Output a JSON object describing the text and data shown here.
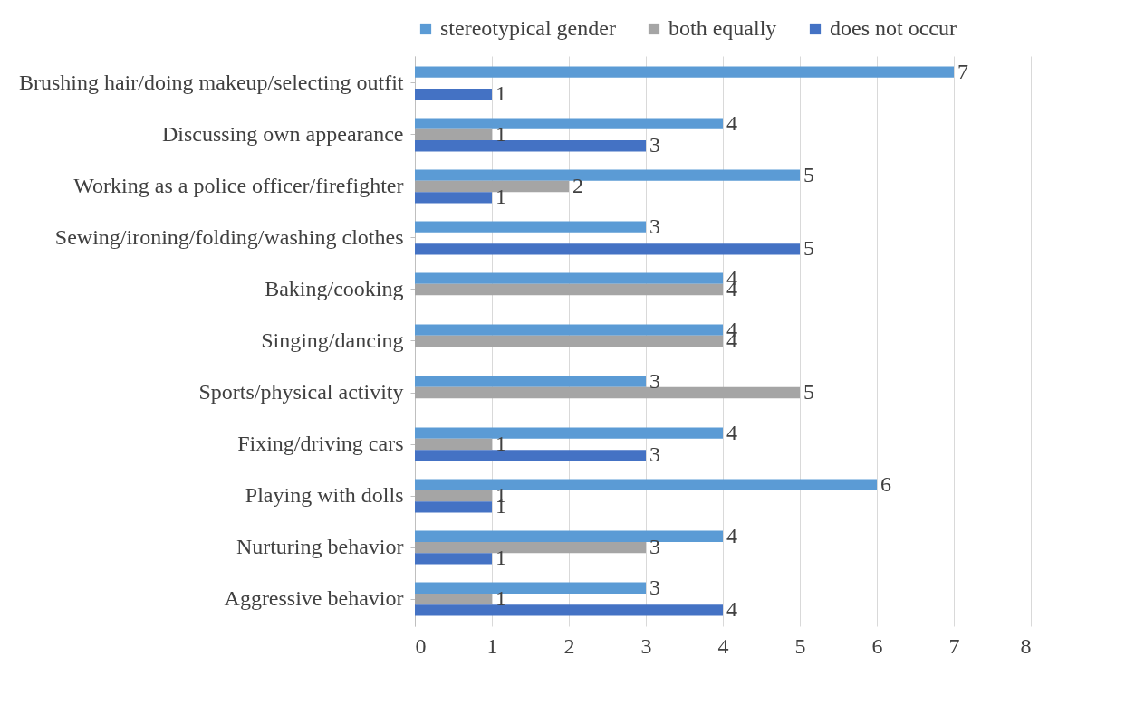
{
  "chart_data": {
    "type": "bar",
    "orientation": "horizontal",
    "categories": [
      "Brushing hair/doing makeup/selecting outfit",
      "Discussing own appearance",
      "Working as a police officer/firefighter",
      "Sewing/ironing/folding/washing clothes",
      "Baking/cooking",
      "Singing/dancing",
      "Sports/physical activity",
      "Fixing/driving cars",
      "Playing with dolls",
      "Nurturing behavior",
      "Aggressive behavior"
    ],
    "series": [
      {
        "name": "stereotypical gender",
        "color": "#5b9bd5",
        "values": [
          7,
          4,
          5,
          3,
          4,
          4,
          3,
          4,
          6,
          4,
          3
        ]
      },
      {
        "name": "both equally",
        "color": "#a5a5a5",
        "values": [
          null,
          1,
          2,
          null,
          4,
          4,
          5,
          1,
          1,
          3,
          1
        ]
      },
      {
        "name": "does not occur",
        "color": "#4472c4",
        "values": [
          1,
          3,
          1,
          5,
          null,
          null,
          null,
          3,
          1,
          1,
          4
        ]
      }
    ],
    "xlim": [
      0,
      8
    ],
    "xticks": [
      0,
      1,
      2,
      3,
      4,
      5,
      6,
      7,
      8
    ],
    "grid": "x",
    "legend": "top",
    "data_labels": true
  }
}
